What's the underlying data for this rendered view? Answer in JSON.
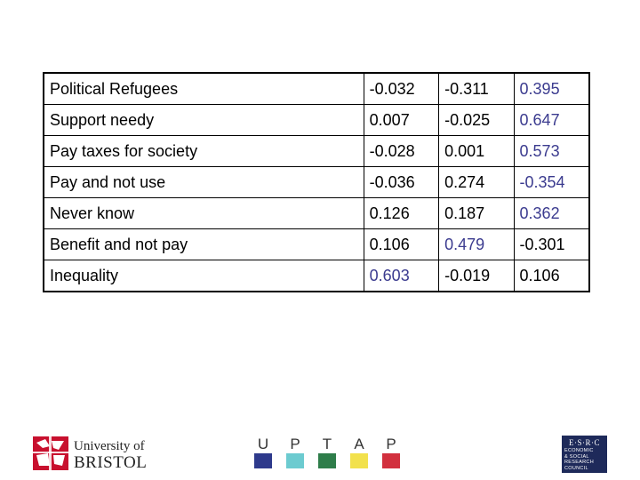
{
  "table": {
    "rows": [
      {
        "label": "Political Refugees",
        "v1": "-0.032",
        "v2": "-0.311",
        "v3": "0.395",
        "highlight": [
          false,
          false,
          true
        ]
      },
      {
        "label": "Support needy",
        "v1": "0.007",
        "v2": "-0.025",
        "v3": "0.647",
        "highlight": [
          false,
          false,
          true
        ]
      },
      {
        "label": "Pay taxes for society",
        "v1": "-0.028",
        "v2": "0.001",
        "v3": "0.573",
        "highlight": [
          false,
          false,
          true
        ]
      },
      {
        "label": "Pay and not use",
        "v1": "-0.036",
        "v2": "0.274",
        "v3": "-0.354",
        "highlight": [
          false,
          false,
          true
        ]
      },
      {
        "label": "Never know",
        "v1": "0.126",
        "v2": "0.187",
        "v3": "0.362",
        "highlight": [
          false,
          false,
          true
        ]
      },
      {
        "label": "Benefit and not pay",
        "v1": "0.106",
        "v2": "0.479",
        "v3": "-0.301",
        "highlight": [
          false,
          true,
          false
        ]
      },
      {
        "label": "Inequality",
        "v1": "0.603",
        "v2": "-0.019",
        "v3": "0.106",
        "highlight": [
          true,
          false,
          false
        ]
      }
    ]
  },
  "footer": {
    "bristol": {
      "line1": "University of",
      "line2": "BRISTOL",
      "colors": {
        "crest": "#c8102e"
      }
    },
    "uptap": {
      "letters": [
        "U",
        "P",
        "T",
        "A",
        "P"
      ],
      "colors": [
        "#2e3a8c",
        "#6ccbd0",
        "#2e7d4a",
        "#f2e14c",
        "#d2303e"
      ]
    },
    "esrc": {
      "title": "E·S·R·C",
      "lines": [
        "ECONOMIC",
        "& SOCIAL",
        "RESEARCH",
        "COUNCIL"
      ],
      "colors": {
        "bg": "#1e2a5a"
      }
    }
  }
}
